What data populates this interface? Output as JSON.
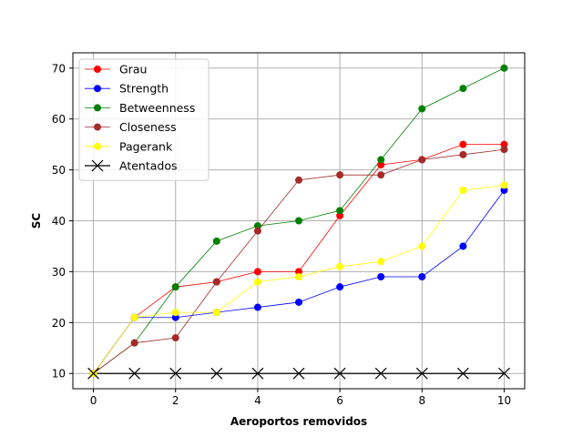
{
  "chart_data": {
    "type": "line",
    "title": "",
    "xlabel": "Aeroportos removidos",
    "ylabel": "SC",
    "x": [
      0,
      1,
      2,
      3,
      4,
      5,
      6,
      7,
      8,
      9,
      10
    ],
    "xlim": [
      -0.5,
      10.5
    ],
    "ylim": [
      7,
      73
    ],
    "xticks": [
      0,
      2,
      4,
      6,
      8,
      10
    ],
    "yticks": [
      10,
      20,
      30,
      40,
      50,
      60,
      70
    ],
    "grid": true,
    "legend_position": "top-left",
    "series": [
      {
        "name": "Grau",
        "color": "#ff0000",
        "marker": "circle",
        "values": [
          10,
          21,
          27,
          28,
          30,
          30,
          41,
          51,
          52,
          55,
          55
        ]
      },
      {
        "name": "Strength",
        "color": "#0000ff",
        "marker": "circle",
        "values": [
          10,
          21,
          21,
          22,
          23,
          24,
          27,
          29,
          29,
          35,
          46
        ]
      },
      {
        "name": "Betweenness",
        "color": "#008000",
        "marker": "circle",
        "values": [
          10,
          16,
          27,
          36,
          39,
          40,
          42,
          52,
          62,
          66,
          70
        ]
      },
      {
        "name": "Closeness",
        "color": "#a52a2a",
        "marker": "circle",
        "values": [
          10,
          16,
          17,
          28,
          38,
          48,
          49,
          49,
          52,
          53,
          54
        ]
      },
      {
        "name": "Pagerank",
        "color": "#ffff00",
        "marker": "circle",
        "values": [
          10,
          21,
          22,
          22,
          28,
          29,
          31,
          32,
          35,
          46,
          47
        ]
      },
      {
        "name": "Atentados",
        "color": "#000000",
        "marker": "x",
        "values": [
          10,
          10,
          10,
          10,
          10,
          10,
          10,
          10,
          10,
          10,
          10
        ]
      }
    ]
  }
}
